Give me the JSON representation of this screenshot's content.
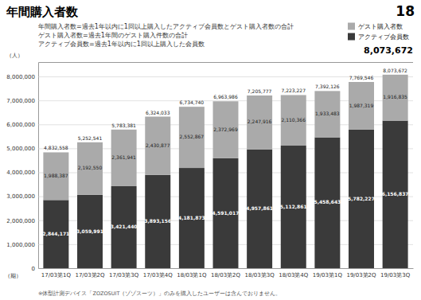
{
  "chart_data": {
    "type": "bar",
    "stacked": true,
    "title": "年間購入者数",
    "page_number": "18",
    "total_label": "8,073,672",
    "annotations": [
      "年間購入者数=過去1年以内に1回以上購入したアクティブ会員数とゲスト購入者数の合計",
      "ゲスト購入者数=過去1年間のゲスト購入件数の合計",
      "アクティブ会員数=過去1年以内に1回以上購入した会員数"
    ],
    "note": "※体型計測デバイス「ZOZOSUIT（ゾゾスーツ）」のみを購入したユーザーは含んでおりません。",
    "ylabel": "（人）",
    "xlabel": "（期）",
    "categories": [
      "17/03第1Q",
      "17/03第2Q",
      "17/03第3Q",
      "17/03第4Q",
      "18/03第1Q",
      "18/03第2Q",
      "18/03第3Q",
      "18/03第4Q",
      "19/03第1Q",
      "19/03第2Q",
      "19/03第3Q"
    ],
    "series": [
      {
        "name": "アクティブ会員数",
        "color": "#3a3a3a",
        "values": [
          2844171,
          3059991,
          3421440,
          3893156,
          4181873,
          4591017,
          4957861,
          5112861,
          5458643,
          5782227,
          6156837
        ],
        "value_labels": [
          "2,844,171",
          "3,059,991",
          "3,421,440",
          "3,893,156",
          "4,181,873",
          "4,591,017",
          "4,957,861",
          "5,112,861",
          "5,458,643",
          "5,782,227",
          "6,156,837"
        ]
      },
      {
        "name": "ゲスト購入者数",
        "color": "#aaaaaa",
        "values": [
          1988387,
          2192550,
          2361941,
          2430877,
          2552867,
          2372969,
          2247916,
          2110366,
          1933483,
          1987319,
          1916835
        ],
        "value_labels": [
          "1,988,387",
          "2,192,550",
          "2,361,941",
          "2,430,877",
          "2,552,867",
          "2,372,969",
          "2,247,916",
          "2,110,366",
          "1,933,483",
          "1,987,319",
          "1,916,835"
        ]
      }
    ],
    "totals": [
      4832558,
      5252541,
      5783381,
      6324033,
      6734740,
      6963986,
      7205777,
      7223227,
      7392126,
      7769546,
      8073672
    ],
    "total_labels": [
      "4,832,558",
      "5,252,541",
      "5,783,381",
      "6,324,033",
      "6,734,740",
      "6,963,986",
      "7,205,777",
      "7,223,227",
      "7,392,126",
      "7,769,546",
      "8,073,672"
    ],
    "ylim": [
      0,
      8600000
    ],
    "yticks": [
      0,
      {
        "value": 1000000,
        "label": "1,000,000"
      },
      {
        "value": 2000000,
        "label": "2,000,000"
      },
      {
        "value": 3000000,
        "label": "3,000,000"
      },
      {
        "value": 4000000,
        "label": "4,000,000"
      },
      {
        "value": 5000000,
        "label": "5,000,000"
      },
      {
        "value": 6000000,
        "label": "6,000,000"
      },
      {
        "value": 7000000,
        "label": "7,000,000"
      },
      {
        "value": 8000000,
        "label": "8,000,000"
      }
    ],
    "grid": true,
    "data_labels": true,
    "legend": "upper right"
  }
}
